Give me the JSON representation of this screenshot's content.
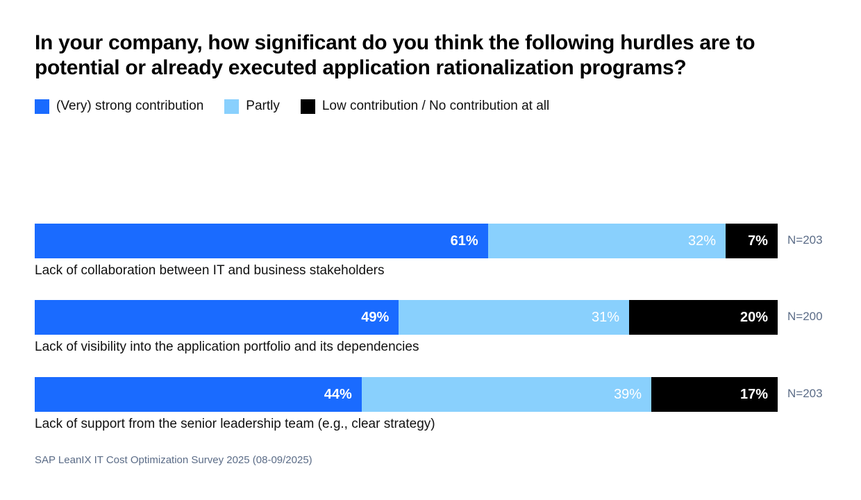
{
  "chart_data": {
    "type": "bar",
    "orientation": "horizontal",
    "stacked": true,
    "title": "In your company, how significant do you think the following hurdles are to potential or already executed application rationalization programs?",
    "legend": {
      "placement": "top-left",
      "entries": [
        {
          "name": "(Very) strong contribution",
          "color": "#1a6bff"
        },
        {
          "name": "Partly",
          "color": "#89d0fd"
        },
        {
          "name": "Low contribution / No contribution at all",
          "color": "#000000"
        }
      ]
    },
    "categories": [
      "Lack of collaboration between IT and business stakeholders",
      "Lack of visibility into the application portfolio and its dependencies",
      "Lack of support from the senior leadership team (e.g., clear strategy)"
    ],
    "series": [
      {
        "name": "(Very) strong contribution",
        "color": "#1a6bff",
        "values": [
          61,
          49,
          44
        ]
      },
      {
        "name": "Partly",
        "color": "#89d0fd",
        "values": [
          32,
          31,
          39
        ]
      },
      {
        "name": "Low contribution / No contribution at all",
        "color": "#000000",
        "values": [
          7,
          20,
          17
        ]
      }
    ],
    "sample_sizes": [
      "N=203",
      "N=200",
      "N=203"
    ],
    "value_suffix": "%",
    "xlim": [
      0,
      100
    ],
    "grid": false,
    "xlabel": "",
    "ylabel": "",
    "source": "SAP LeanIX IT Cost Optimization Survey 2025 (08-09/2025)"
  }
}
